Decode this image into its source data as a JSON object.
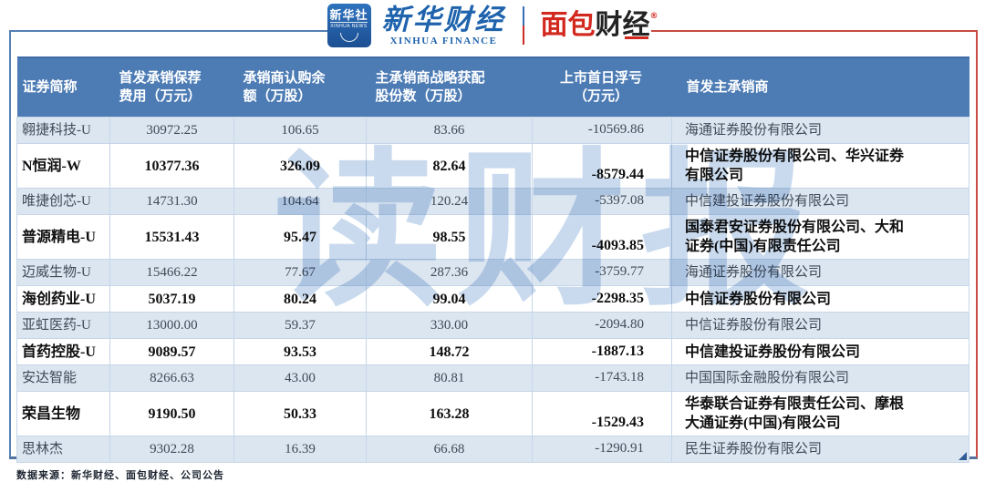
{
  "brand": {
    "badge_title": "新华社",
    "badge_subtitle": "XINHUA NEWS",
    "xinhua_name": "新华财经",
    "xinhua_caption": "XINHUA FINANCE",
    "bread_name_red": "面包",
    "bread_name_dark": "财经",
    "reg_mark": "®"
  },
  "watermark_text": "读财报",
  "chart_data": {
    "type": "table",
    "columns": [
      "证券简称",
      "首发承销保荐\n费用（万元）",
      "承销商认购余\n额（万股）",
      "主承销商战略获配\n股份数（万股）",
      "上市首日浮亏\n（万元）",
      "首发主承销商"
    ],
    "rows": [
      {
        "name": "翱捷科技-U",
        "fee": "30972.25",
        "balance": "106.65",
        "shares": "83.66",
        "loss": "-10569.86",
        "underwriter": "海通证券股份有限公司",
        "bold": false
      },
      {
        "name": "N恒润-W",
        "fee": "10377.36",
        "balance": "326.09",
        "shares": "82.64",
        "loss": "-8579.44",
        "underwriter": "中信证券股份有限公司、华兴证券\n有限公司",
        "bold": true
      },
      {
        "name": "唯捷创芯-U",
        "fee": "14731.30",
        "balance": "104.64",
        "shares": "120.24",
        "loss": "-5397.08",
        "underwriter": "中信建投证券股份有限公司",
        "bold": false
      },
      {
        "name": "普源精电-U",
        "fee": "15531.43",
        "balance": "95.47",
        "shares": "98.55",
        "loss": "-4093.85",
        "underwriter": "国泰君安证券股份有限公司、大和\n证券(中国)有限责任公司",
        "bold": true
      },
      {
        "name": "迈威生物-U",
        "fee": "15466.22",
        "balance": "77.67",
        "shares": "287.36",
        "loss": "-3759.77",
        "underwriter": "海通证券股份有限公司",
        "bold": false
      },
      {
        "name": "海创药业-U",
        "fee": "5037.19",
        "balance": "80.24",
        "shares": "99.04",
        "loss": "-2298.35",
        "underwriter": "中信证券股份有限公司",
        "bold": true
      },
      {
        "name": "亚虹医药-U",
        "fee": "13000.00",
        "balance": "59.37",
        "shares": "330.00",
        "loss": "-2094.80",
        "underwriter": "中信证券股份有限公司",
        "bold": false
      },
      {
        "name": "首药控股-U",
        "fee": "9089.57",
        "balance": "93.53",
        "shares": "148.72",
        "loss": "-1887.13",
        "underwriter": "中信建投证券股份有限公司",
        "bold": true
      },
      {
        "name": "安达智能",
        "fee": "8266.63",
        "balance": "43.00",
        "shares": "80.81",
        "loss": "-1743.18",
        "underwriter": "中国国际金融股份有限公司",
        "bold": false
      },
      {
        "name": "荣昌生物",
        "fee": "9190.50",
        "balance": "50.33",
        "shares": "163.28",
        "loss": "-1529.43",
        "underwriter": "华泰联合证券有限责任公司、摩根\n大通证券(中国)有限公司",
        "bold": true
      },
      {
        "name": "思林杰",
        "fee": "9302.28",
        "balance": "16.39",
        "shares": "66.68",
        "loss": "-1290.91",
        "underwriter": "民生证券股份有限公司",
        "bold": false
      }
    ]
  },
  "footer": {
    "source": "数据来源：新华财经、面包财经、公司公告"
  },
  "colors": {
    "header_bg": "#4d7cb5",
    "row_alt_bg": "#dce6f1",
    "frame_blue": "#5580b4",
    "frame_red": "#c94b42",
    "bottom_line": "#54749f",
    "xinhua_blue": "#1f63ad",
    "bread_red": "#d2281e",
    "watermark": "#c9daee"
  }
}
